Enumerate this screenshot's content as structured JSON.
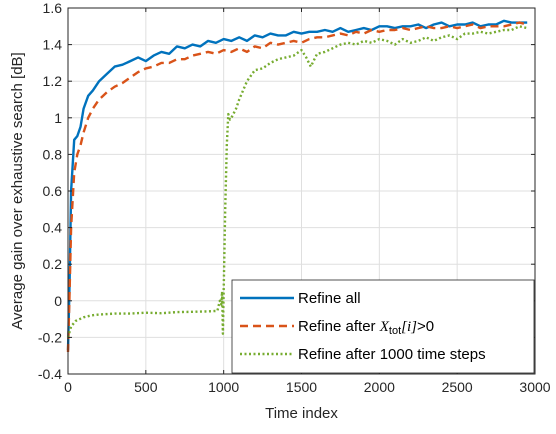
{
  "chart_data": {
    "type": "line",
    "title": "",
    "xlabel": "Time index",
    "ylabel": "Average gain over exhaustive search [dB]",
    "xlim": [
      0,
      3000
    ],
    "ylim": [
      -0.4,
      1.6
    ],
    "xticks": [
      0,
      500,
      1000,
      1500,
      2000,
      2500,
      3000
    ],
    "yticks": [
      -0.4,
      -0.2,
      0,
      0.2,
      0.4,
      0.6,
      0.8,
      1,
      1.2,
      1.4,
      1.6
    ],
    "xtick_labels": [
      "0",
      "500",
      "1000",
      "1500",
      "2000",
      "2500",
      "3000"
    ],
    "ytick_labels": [
      "-0.4",
      "-0.2",
      "0",
      "0.2",
      "0.4",
      "0.6",
      "0.8",
      "1",
      "1.2",
      "1.4",
      "1.6"
    ],
    "grid": true,
    "legend_position": "bottom-right",
    "series": [
      {
        "name": "Refine all",
        "color": "#0072BD",
        "style": "solid",
        "points": [
          [
            0,
            -0.27
          ],
          [
            10,
            0.1
          ],
          [
            20,
            0.6
          ],
          [
            40,
            0.88
          ],
          [
            60,
            0.9
          ],
          [
            80,
            0.95
          ],
          [
            100,
            1.05
          ],
          [
            130,
            1.12
          ],
          [
            160,
            1.15
          ],
          [
            200,
            1.2
          ],
          [
            250,
            1.24
          ],
          [
            300,
            1.28
          ],
          [
            350,
            1.29
          ],
          [
            400,
            1.31
          ],
          [
            450,
            1.33
          ],
          [
            500,
            1.31
          ],
          [
            550,
            1.34
          ],
          [
            600,
            1.36
          ],
          [
            650,
            1.35
          ],
          [
            700,
            1.39
          ],
          [
            750,
            1.38
          ],
          [
            800,
            1.4
          ],
          [
            850,
            1.39
          ],
          [
            900,
            1.42
          ],
          [
            950,
            1.41
          ],
          [
            1000,
            1.43
          ],
          [
            1050,
            1.42
          ],
          [
            1100,
            1.44
          ],
          [
            1150,
            1.42
          ],
          [
            1200,
            1.45
          ],
          [
            1250,
            1.44
          ],
          [
            1300,
            1.46
          ],
          [
            1350,
            1.45
          ],
          [
            1400,
            1.45
          ],
          [
            1450,
            1.47
          ],
          [
            1500,
            1.46
          ],
          [
            1550,
            1.47
          ],
          [
            1600,
            1.47
          ],
          [
            1650,
            1.48
          ],
          [
            1700,
            1.47
          ],
          [
            1750,
            1.49
          ],
          [
            1800,
            1.47
          ],
          [
            1850,
            1.48
          ],
          [
            1900,
            1.49
          ],
          [
            1950,
            1.48
          ],
          [
            2000,
            1.5
          ],
          [
            2050,
            1.5
          ],
          [
            2100,
            1.49
          ],
          [
            2150,
            1.5
          ],
          [
            2200,
            1.5
          ],
          [
            2250,
            1.51
          ],
          [
            2300,
            1.49
          ],
          [
            2350,
            1.51
          ],
          [
            2400,
            1.52
          ],
          [
            2450,
            1.5
          ],
          [
            2500,
            1.51
          ],
          [
            2550,
            1.51
          ],
          [
            2600,
            1.52
          ],
          [
            2650,
            1.5
          ],
          [
            2700,
            1.51
          ],
          [
            2750,
            1.51
          ],
          [
            2800,
            1.53
          ],
          [
            2850,
            1.52
          ],
          [
            2900,
            1.52
          ],
          [
            2950,
            1.52
          ]
        ]
      },
      {
        "name": "Refine after X_tot[i]>0",
        "color": "#D95319",
        "style": "dashed",
        "points": [
          [
            0,
            -0.28
          ],
          [
            10,
            0.05
          ],
          [
            20,
            0.4
          ],
          [
            40,
            0.7
          ],
          [
            60,
            0.8
          ],
          [
            80,
            0.85
          ],
          [
            100,
            0.92
          ],
          [
            130,
            1.0
          ],
          [
            160,
            1.05
          ],
          [
            200,
            1.1
          ],
          [
            250,
            1.14
          ],
          [
            300,
            1.17
          ],
          [
            350,
            1.19
          ],
          [
            400,
            1.22
          ],
          [
            450,
            1.25
          ],
          [
            500,
            1.27
          ],
          [
            550,
            1.28
          ],
          [
            600,
            1.3
          ],
          [
            650,
            1.3
          ],
          [
            700,
            1.32
          ],
          [
            750,
            1.32
          ],
          [
            800,
            1.34
          ],
          [
            850,
            1.35
          ],
          [
            900,
            1.36
          ],
          [
            950,
            1.35
          ],
          [
            1000,
            1.37
          ],
          [
            1050,
            1.36
          ],
          [
            1100,
            1.38
          ],
          [
            1150,
            1.36
          ],
          [
            1200,
            1.39
          ],
          [
            1250,
            1.38
          ],
          [
            1300,
            1.41
          ],
          [
            1350,
            1.4
          ],
          [
            1400,
            1.41
          ],
          [
            1450,
            1.42
          ],
          [
            1500,
            1.41
          ],
          [
            1550,
            1.43
          ],
          [
            1600,
            1.44
          ],
          [
            1650,
            1.44
          ],
          [
            1700,
            1.45
          ],
          [
            1750,
            1.46
          ],
          [
            1800,
            1.45
          ],
          [
            1850,
            1.47
          ],
          [
            1900,
            1.46
          ],
          [
            1950,
            1.48
          ],
          [
            2000,
            1.47
          ],
          [
            2050,
            1.48
          ],
          [
            2100,
            1.48
          ],
          [
            2150,
            1.49
          ],
          [
            2200,
            1.48
          ],
          [
            2250,
            1.49
          ],
          [
            2300,
            1.5
          ],
          [
            2350,
            1.49
          ],
          [
            2400,
            1.49
          ],
          [
            2450,
            1.5
          ],
          [
            2500,
            1.49
          ],
          [
            2550,
            1.5
          ],
          [
            2600,
            1.51
          ],
          [
            2650,
            1.49
          ],
          [
            2700,
            1.5
          ],
          [
            2750,
            1.5
          ],
          [
            2800,
            1.5
          ],
          [
            2850,
            1.51
          ],
          [
            2900,
            1.52
          ],
          [
            2950,
            1.51
          ]
        ]
      },
      {
        "name": "Refine after 1000 time steps",
        "color": "#77AC30",
        "style": "dotted",
        "points": [
          [
            0,
            -0.2
          ],
          [
            20,
            -0.14
          ],
          [
            50,
            -0.11
          ],
          [
            100,
            -0.09
          ],
          [
            150,
            -0.08
          ],
          [
            200,
            -0.075
          ],
          [
            300,
            -0.07
          ],
          [
            400,
            -0.07
          ],
          [
            500,
            -0.065
          ],
          [
            600,
            -0.068
          ],
          [
            700,
            -0.062
          ],
          [
            800,
            -0.06
          ],
          [
            900,
            -0.058
          ],
          [
            960,
            -0.055
          ],
          [
            975,
            0.0
          ],
          [
            985,
            -0.02
          ],
          [
            990,
            0.05
          ],
          [
            995,
            -0.18
          ],
          [
            1000,
            0.06
          ],
          [
            1010,
            0.5
          ],
          [
            1020,
            0.85
          ],
          [
            1030,
            1.02
          ],
          [
            1040,
            0.99
          ],
          [
            1050,
            1.0
          ],
          [
            1080,
            1.05
          ],
          [
            1100,
            1.1
          ],
          [
            1150,
            1.2
          ],
          [
            1200,
            1.26
          ],
          [
            1250,
            1.27
          ],
          [
            1300,
            1.3
          ],
          [
            1350,
            1.32
          ],
          [
            1400,
            1.33
          ],
          [
            1450,
            1.34
          ],
          [
            1500,
            1.37
          ],
          [
            1530,
            1.33
          ],
          [
            1560,
            1.28
          ],
          [
            1600,
            1.35
          ],
          [
            1650,
            1.36
          ],
          [
            1700,
            1.38
          ],
          [
            1750,
            1.4
          ],
          [
            1800,
            1.41
          ],
          [
            1850,
            1.4
          ],
          [
            1900,
            1.42
          ],
          [
            1950,
            1.41
          ],
          [
            2000,
            1.43
          ],
          [
            2050,
            1.42
          ],
          [
            2100,
            1.4
          ],
          [
            2150,
            1.43
          ],
          [
            2200,
            1.41
          ],
          [
            2250,
            1.42
          ],
          [
            2300,
            1.44
          ],
          [
            2350,
            1.42
          ],
          [
            2400,
            1.44
          ],
          [
            2450,
            1.45
          ],
          [
            2500,
            1.43
          ],
          [
            2550,
            1.46
          ],
          [
            2600,
            1.46
          ],
          [
            2650,
            1.47
          ],
          [
            2700,
            1.46
          ],
          [
            2750,
            1.47
          ],
          [
            2800,
            1.48
          ],
          [
            2850,
            1.48
          ],
          [
            2900,
            1.5
          ],
          [
            2950,
            1.49
          ]
        ]
      }
    ],
    "legend": {
      "entries": [
        {
          "label": "Refine all"
        },
        {
          "label_prefix": "Refine after ",
          "label_math": "X",
          "label_sub": "tot",
          "label_idx": "[i]",
          "label_suffix": ">0"
        },
        {
          "label": "Refine after 1000 time steps"
        }
      ]
    }
  }
}
